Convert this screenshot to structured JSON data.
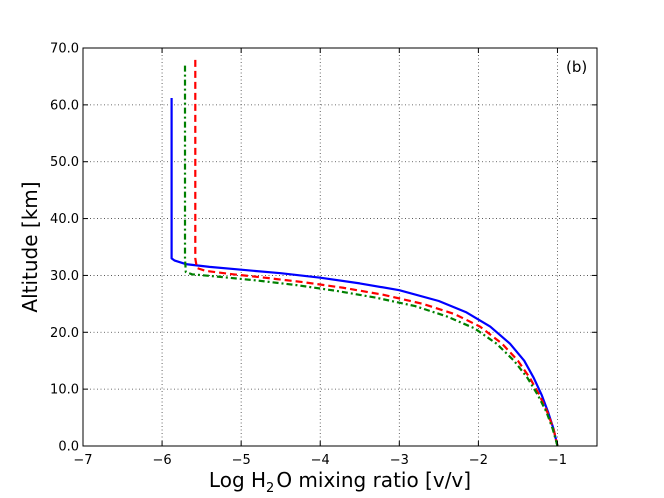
{
  "chart_data": {
    "type": "line",
    "title": "",
    "panel_label": "(b)",
    "xlabel": {
      "prefix": "Log H",
      "sub": "2",
      "suffix": "O mixing ratio [v/v]"
    },
    "ylabel": "Altitude [km]",
    "xlim": [
      -7,
      -0.5
    ],
    "ylim": [
      0,
      70
    ],
    "xticks": [
      {
        "value": -7,
        "label": "−7"
      },
      {
        "value": -6,
        "label": "−6"
      },
      {
        "value": -5,
        "label": "−5"
      },
      {
        "value": -4,
        "label": "−4"
      },
      {
        "value": -3,
        "label": "−3"
      },
      {
        "value": -2,
        "label": "−2"
      },
      {
        "value": -1,
        "label": "−1"
      }
    ],
    "yticks": [
      {
        "value": 0,
        "label": "0.0"
      },
      {
        "value": 10,
        "label": "10.0"
      },
      {
        "value": 20,
        "label": "20.0"
      },
      {
        "value": 30,
        "label": "30.0"
      },
      {
        "value": 40,
        "label": "40.0"
      },
      {
        "value": 50,
        "label": "50.0"
      },
      {
        "value": 60,
        "label": "60.0"
      },
      {
        "value": 70,
        "label": "70.0"
      }
    ],
    "grid": true,
    "series": [
      {
        "name": "blue-solid",
        "color": "#0000ff",
        "style": "solid",
        "points": [
          [
            -1.0,
            0
          ],
          [
            -1.05,
            3
          ],
          [
            -1.12,
            6
          ],
          [
            -1.2,
            9
          ],
          [
            -1.3,
            12
          ],
          [
            -1.42,
            15
          ],
          [
            -1.6,
            18
          ],
          [
            -1.85,
            21
          ],
          [
            -2.15,
            23.5
          ],
          [
            -2.5,
            25.5
          ],
          [
            -3.0,
            27.4
          ],
          [
            -3.5,
            28.6
          ],
          [
            -4.0,
            29.6
          ],
          [
            -4.5,
            30.4
          ],
          [
            -5.0,
            31.0
          ],
          [
            -5.4,
            31.5
          ],
          [
            -5.7,
            32.0
          ],
          [
            -5.84,
            32.6
          ],
          [
            -5.88,
            33.0
          ],
          [
            -5.88,
            40
          ],
          [
            -5.88,
            50
          ],
          [
            -5.88,
            61.2
          ]
        ]
      },
      {
        "name": "red-dashed",
        "color": "#ff0000",
        "style": "dashed",
        "points": [
          [
            -1.0,
            0
          ],
          [
            -1.05,
            3
          ],
          [
            -1.13,
            6
          ],
          [
            -1.23,
            9
          ],
          [
            -1.35,
            12
          ],
          [
            -1.5,
            15
          ],
          [
            -1.7,
            18
          ],
          [
            -1.98,
            21
          ],
          [
            -2.3,
            23.2
          ],
          [
            -2.7,
            25
          ],
          [
            -3.2,
            26.6
          ],
          [
            -3.7,
            27.8
          ],
          [
            -4.2,
            28.8
          ],
          [
            -4.7,
            29.6
          ],
          [
            -5.1,
            30.2
          ],
          [
            -5.45,
            30.8
          ],
          [
            -5.56,
            31.3
          ],
          [
            -5.58,
            33
          ],
          [
            -5.58,
            40
          ],
          [
            -5.58,
            50
          ],
          [
            -5.58,
            60
          ],
          [
            -5.58,
            68.1
          ]
        ]
      },
      {
        "name": "green-dashdot",
        "color": "#008000",
        "style": "dashdot",
        "points": [
          [
            -1.0,
            0
          ],
          [
            -1.06,
            3
          ],
          [
            -1.14,
            6
          ],
          [
            -1.25,
            9
          ],
          [
            -1.38,
            12
          ],
          [
            -1.55,
            15
          ],
          [
            -1.77,
            18
          ],
          [
            -2.05,
            20.7
          ],
          [
            -2.4,
            22.8
          ],
          [
            -2.8,
            24.6
          ],
          [
            -3.3,
            26.1
          ],
          [
            -3.8,
            27.3
          ],
          [
            -4.3,
            28.3
          ],
          [
            -4.8,
            29.1
          ],
          [
            -5.3,
            29.8
          ],
          [
            -5.62,
            30.2
          ],
          [
            -5.7,
            30.6
          ],
          [
            -5.71,
            33
          ],
          [
            -5.71,
            40
          ],
          [
            -5.71,
            50
          ],
          [
            -5.71,
            60
          ],
          [
            -5.71,
            67.2
          ]
        ]
      }
    ]
  }
}
